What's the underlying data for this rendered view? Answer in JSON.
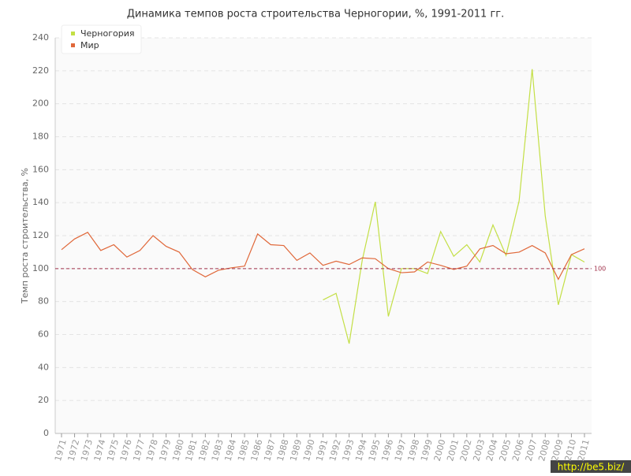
{
  "chart_data": {
    "type": "line",
    "title": "Динамика темпов роста строительства Черногории, %, 1991-2011 гг.",
    "y_label": "Темп роста строительства, %",
    "categories": [
      "1971",
      "1972",
      "1973",
      "1974",
      "1975",
      "1976",
      "1977",
      "1978",
      "1979",
      "1980",
      "1981",
      "1982",
      "1983",
      "1984",
      "1985",
      "1986",
      "1987",
      "1988",
      "1989",
      "1990",
      "1991",
      "1992",
      "1993",
      "1994",
      "1995",
      "1996",
      "1997",
      "1998",
      "1999",
      "2000",
      "2001",
      "2002",
      "2003",
      "2004",
      "2005",
      "2006",
      "2007",
      "2008",
      "2009",
      "2010",
      "2011"
    ],
    "series": [
      {
        "name": "Черногория",
        "color": "#c3df45",
        "values": [
          null,
          null,
          null,
          null,
          null,
          null,
          null,
          null,
          null,
          null,
          null,
          null,
          null,
          null,
          null,
          null,
          null,
          null,
          null,
          null,
          81,
          85,
          54.5,
          105,
          140.5,
          71,
          100,
          100,
          97,
          122.5,
          107.5,
          114.5,
          104,
          126.5,
          108,
          141,
          221,
          132,
          78,
          108.5,
          104
        ]
      },
      {
        "name": "Мир",
        "color": "#e0683a",
        "values": [
          111.5,
          118,
          122,
          111,
          114.5,
          107,
          111,
          120,
          113.5,
          110,
          99.5,
          95,
          99,
          100.5,
          101.5,
          121,
          114.5,
          114,
          105,
          109.5,
          102,
          104.5,
          102.5,
          106.5,
          106,
          100,
          97.5,
          98,
          104,
          102,
          99.5,
          101.5,
          112,
          114,
          109,
          110,
          114,
          109.5,
          93.5,
          108.5,
          112
        ]
      }
    ],
    "reference_line": 100,
    "ylim": [
      0,
      240
    ],
    "yticks": [
      0,
      20,
      40,
      60,
      80,
      100,
      120,
      140,
      160,
      180,
      200,
      220,
      240
    ],
    "grid": true,
    "legend": "top-left",
    "watermark": "http://be5.biz/"
  }
}
